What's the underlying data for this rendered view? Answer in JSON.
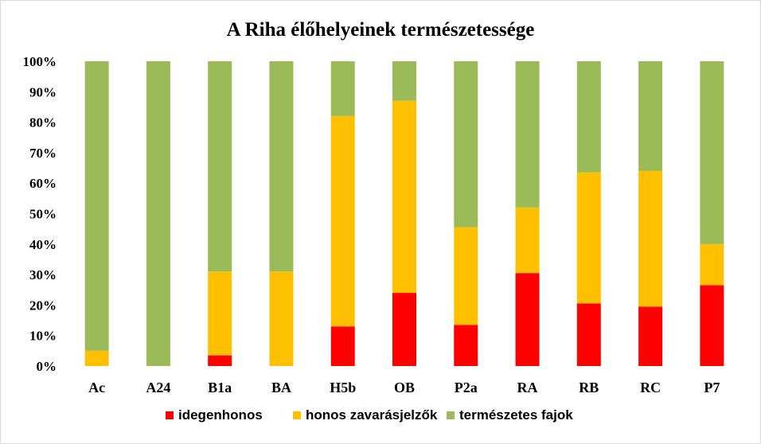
{
  "chart_data": {
    "type": "bar",
    "stacked": "percent",
    "title": "A Riha élőhelyeinek természetessége",
    "categories": [
      "Ac",
      "A24",
      "B1a",
      "BA",
      "H5b",
      "OB",
      "P2a",
      "RA",
      "RB",
      "RC",
      "P7"
    ],
    "series": [
      {
        "name": "idegenhonos",
        "color": "#ff0000",
        "values": [
          0,
          0,
          3.5,
          0,
          13,
          24,
          13.5,
          30.5,
          20.5,
          19.5,
          26.5
        ]
      },
      {
        "name": "honos zavarásjelzők",
        "color": "#ffc000",
        "values": [
          5,
          0,
          27.5,
          31,
          69,
          63,
          32,
          21.5,
          43,
          44.5,
          13.5
        ]
      },
      {
        "name": "természetes fajok",
        "color": "#9bbb59",
        "values": [
          95,
          100,
          69,
          69,
          18,
          13,
          54.5,
          48,
          36.5,
          36,
          60
        ]
      }
    ],
    "ylim": [
      0,
      100
    ],
    "yticks": [
      "0%",
      "10%",
      "20%",
      "30%",
      "40%",
      "50%",
      "60%",
      "70%",
      "80%",
      "90%",
      "100%"
    ],
    "grid": false,
    "legend": "bottom"
  }
}
